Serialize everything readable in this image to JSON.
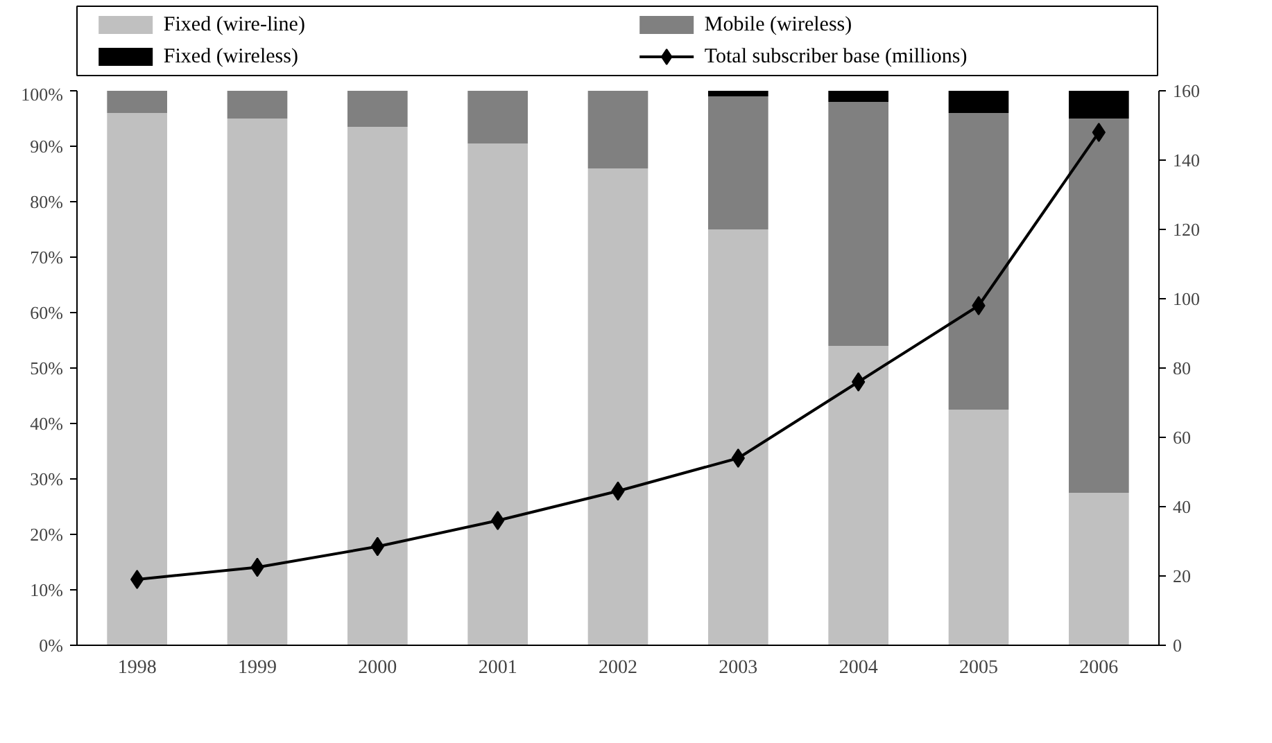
{
  "chart_data": {
    "type": "bar",
    "stacked": true,
    "categories": [
      "1998",
      "1999",
      "2000",
      "2001",
      "2002",
      "2003",
      "2004",
      "2005",
      "2006"
    ],
    "series": [
      {
        "name": "Fixed (wire-line)",
        "color": "#c0c0c0",
        "values": [
          96,
          95,
          93.5,
          90.5,
          86,
          75,
          54,
          42.5,
          27.5
        ]
      },
      {
        "name": "Mobile (wireless)",
        "color": "#808080",
        "values": [
          4,
          5,
          6.5,
          9.5,
          14,
          24,
          44,
          53.5,
          67.5
        ]
      },
      {
        "name": "Fixed (wireless)",
        "color": "#000000",
        "values": [
          0,
          0,
          0,
          0,
          0,
          1,
          2,
          4,
          5
        ]
      },
      {
        "name": "Total subscriber base (millions)",
        "type": "line",
        "axis": "y2",
        "color": "#000000",
        "marker": "diamond",
        "values": [
          19,
          22.5,
          28.5,
          36,
          44.5,
          54,
          76,
          98,
          148
        ]
      }
    ],
    "ylim": [
      0,
      100
    ],
    "yticks": [
      {
        "value": 0,
        "label": "0%"
      },
      {
        "value": 10,
        "label": "10%"
      },
      {
        "value": 20,
        "label": "20%"
      },
      {
        "value": 30,
        "label": "30%"
      },
      {
        "value": 40,
        "label": "40%"
      },
      {
        "value": 50,
        "label": "50%"
      },
      {
        "value": 60,
        "label": "60%"
      },
      {
        "value": 70,
        "label": "70%"
      },
      {
        "value": 80,
        "label": "80%"
      },
      {
        "value": 90,
        "label": "90%"
      },
      {
        "value": 100,
        "label": "100%"
      }
    ],
    "y2lim": [
      0,
      160
    ],
    "y2ticks": [
      0,
      20,
      40,
      60,
      80,
      100,
      120,
      140,
      160
    ],
    "legend": "top",
    "grid": false
  }
}
